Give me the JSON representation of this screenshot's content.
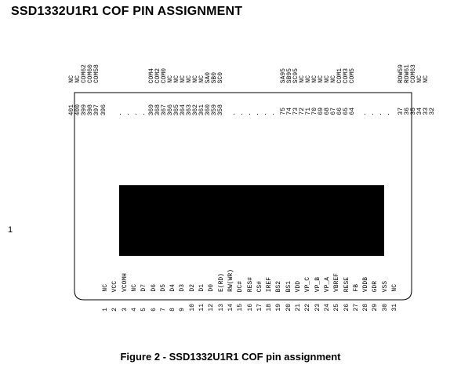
{
  "title": "SSD1332U1R1 COF PIN ASSIGNMENT",
  "caption": "Figure 2 - SSD1332U1R1 COF pin assignment",
  "page_number": "1",
  "top_pins": [
    {
      "num": "401",
      "name": "NC"
    },
    {
      "num": "400",
      "name": "NC"
    },
    {
      "num": "399",
      "name": "COM62"
    },
    {
      "num": "398",
      "name": "COM60"
    },
    {
      "num": "397",
      "name": "COM58"
    },
    {
      "num": "396",
      "name": ""
    },
    {
      "num": "369",
      "name": "COM4"
    },
    {
      "num": "368",
      "name": "COM2"
    },
    {
      "num": "367",
      "name": "COM0"
    },
    {
      "num": "366",
      "name": "NC"
    },
    {
      "num": "365",
      "name": "NC"
    },
    {
      "num": "364",
      "name": "NC"
    },
    {
      "num": "363",
      "name": "NC"
    },
    {
      "num": "362",
      "name": "NC"
    },
    {
      "num": "361",
      "name": "NC"
    },
    {
      "num": "360",
      "name": "SA0"
    },
    {
      "num": "359",
      "name": "SB0"
    },
    {
      "num": "358",
      "name": "SC0"
    },
    {
      "num": "75",
      "name": "SA95"
    },
    {
      "num": "74",
      "name": "SB95"
    },
    {
      "num": "73",
      "name": "SC95"
    },
    {
      "num": "72",
      "name": "NC"
    },
    {
      "num": "71",
      "name": "NC"
    },
    {
      "num": "70",
      "name": "NC"
    },
    {
      "num": "69",
      "name": "NC"
    },
    {
      "num": "68",
      "name": "NC"
    },
    {
      "num": "67",
      "name": "NC"
    },
    {
      "num": "66",
      "name": "COM1"
    },
    {
      "num": "65",
      "name": "COM3"
    },
    {
      "num": "64",
      "name": "COM5"
    },
    {
      "num": "37",
      "name": "ROW59"
    },
    {
      "num": "36",
      "name": "ROW61"
    },
    {
      "num": "35",
      "name": "COM63"
    },
    {
      "num": "34",
      "name": "NC"
    },
    {
      "num": "33",
      "name": "NC"
    },
    {
      "num": "32",
      "name": ""
    }
  ],
  "bottom_pins": [
    {
      "num": "1",
      "name": "NC"
    },
    {
      "num": "2",
      "name": "VCC"
    },
    {
      "num": "3",
      "name": "VCOMH"
    },
    {
      "num": "4",
      "name": "NC"
    },
    {
      "num": "5",
      "name": "D7"
    },
    {
      "num": "6",
      "name": "D6"
    },
    {
      "num": "7",
      "name": "D5"
    },
    {
      "num": "8",
      "name": "D4"
    },
    {
      "num": "9",
      "name": "D3"
    },
    {
      "num": "10",
      "name": "D2"
    },
    {
      "num": "11",
      "name": "D1"
    },
    {
      "num": "12",
      "name": "D0"
    },
    {
      "num": "13",
      "name": "E(RD)"
    },
    {
      "num": "14",
      "name": "RW(WR)"
    },
    {
      "num": "15",
      "name": "DC#"
    },
    {
      "num": "16",
      "name": "RES#"
    },
    {
      "num": "17",
      "name": "CS#"
    },
    {
      "num": "18",
      "name": "IREF"
    },
    {
      "num": "19",
      "name": "BS2"
    },
    {
      "num": "20",
      "name": "BS1"
    },
    {
      "num": "21",
      "name": "VDD"
    },
    {
      "num": "22",
      "name": "VP_C"
    },
    {
      "num": "23",
      "name": "VP_B"
    },
    {
      "num": "24",
      "name": "VP_A"
    },
    {
      "num": "25",
      "name": "VBREF"
    },
    {
      "num": "26",
      "name": "RESE"
    },
    {
      "num": "27",
      "name": "FB"
    },
    {
      "num": "28",
      "name": "VDDB"
    },
    {
      "num": "29",
      "name": "GDR"
    },
    {
      "num": "30",
      "name": "VSS"
    },
    {
      "num": "31",
      "name": "NC"
    }
  ]
}
